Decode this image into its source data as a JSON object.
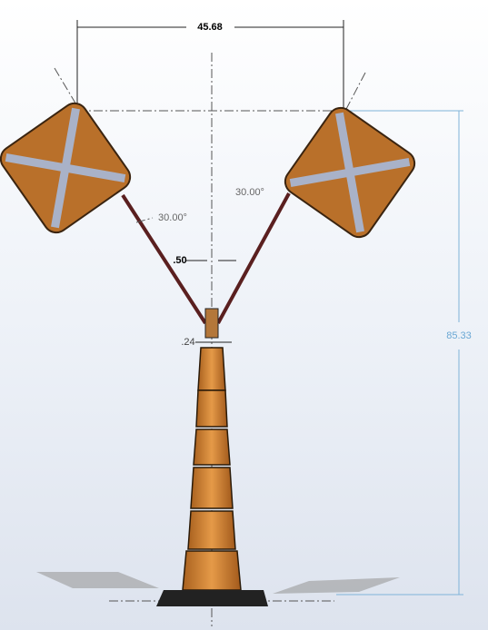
{
  "dimensions": {
    "width": "45.68",
    "height": "85.33",
    "left_angle": "30.00°",
    "right_angle": "30.00°",
    "rod_diameter": ".50",
    "collar": ".24"
  }
}
